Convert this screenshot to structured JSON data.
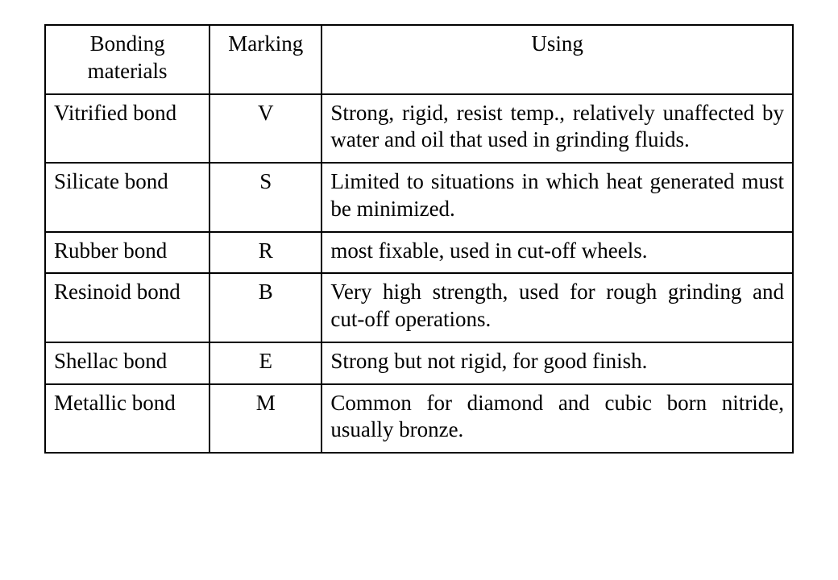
{
  "table": {
    "columns": [
      "Bonding materials",
      "Marking",
      "Using"
    ],
    "rows": [
      {
        "material": "Vitrified bond",
        "marking": "V",
        "using": "Strong, rigid, resist temp., relatively unaffected by water and oil that used in grinding fluids.",
        "justify": true
      },
      {
        "material": "Silicate bond",
        "marking": "S",
        "using": "Limited to situations in which heat generated must be minimized.",
        "justify": true
      },
      {
        "material": "Rubber bond",
        "marking": "R",
        "using": "most fixable, used in cut-off wheels.",
        "justify": false
      },
      {
        "material": "Resinoid bond",
        "marking": "B",
        "using": "Very high strength, used for rough grinding and cut-off operations.",
        "justify": true
      },
      {
        "material": "Shellac bond",
        "marking": "E",
        "using": "Strong but not rigid, for good finish.",
        "justify": false
      },
      {
        "material": "Metallic bond",
        "marking": "M",
        "using": "Common for diamond and cubic born nitride, usually bronze.",
        "justify": true
      }
    ],
    "border_color": "#000000",
    "background_color": "#ffffff",
    "font_family": "Times New Roman",
    "font_size_pt": 20
  }
}
